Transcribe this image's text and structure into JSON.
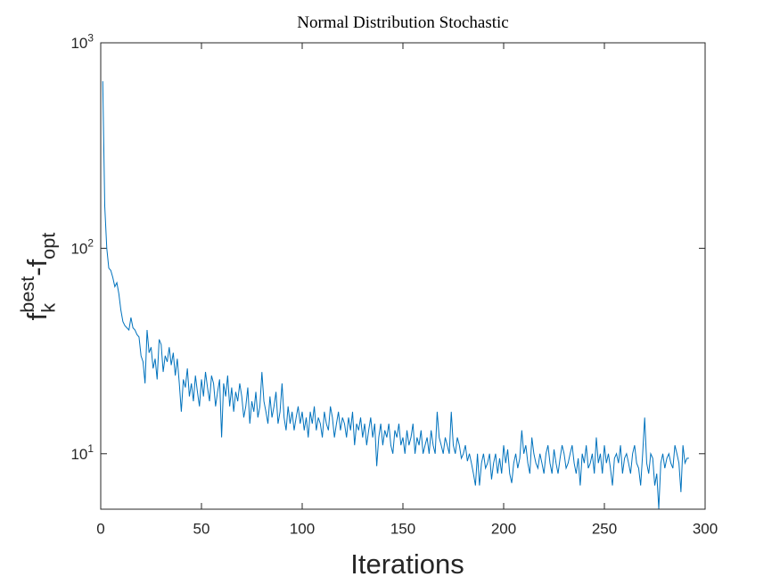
{
  "chart_data": {
    "type": "line",
    "title": "Normal Distribution Stochastic",
    "x_label": "Iterations",
    "y_label": "f_k^{best}-f_{opt}",
    "y_scale": "log",
    "color": "#0072bd",
    "xlim": [
      0,
      300
    ],
    "xticks": [
      0,
      50,
      100,
      150,
      200,
      250,
      300
    ],
    "ylim": [
      5.37,
      1000
    ],
    "yticks": [
      {
        "value": 10,
        "label": "10^1"
      },
      {
        "value": 100,
        "label": "10^2"
      },
      {
        "value": 1000,
        "label": "10^3"
      }
    ],
    "x": [
      1,
      2,
      3,
      4,
      5,
      6,
      7,
      8,
      9,
      10,
      11,
      12,
      13,
      14,
      15,
      16,
      17,
      18,
      19,
      20,
      21,
      22,
      23,
      24,
      25,
      26,
      27,
      28,
      29,
      30,
      31,
      32,
      33,
      34,
      35,
      36,
      37,
      38,
      39,
      40,
      41,
      42,
      43,
      44,
      45,
      46,
      47,
      48,
      49,
      50,
      51,
      52,
      53,
      54,
      55,
      56,
      57,
      58,
      59,
      60,
      61,
      62,
      63,
      64,
      65,
      66,
      67,
      68,
      69,
      70,
      71,
      72,
      73,
      74,
      75,
      76,
      77,
      78,
      79,
      80,
      81,
      82,
      83,
      84,
      85,
      86,
      87,
      88,
      89,
      90,
      91,
      92,
      93,
      94,
      95,
      96,
      97,
      98,
      99,
      100,
      101,
      102,
      103,
      104,
      105,
      106,
      107,
      108,
      109,
      110,
      111,
      112,
      113,
      114,
      115,
      116,
      117,
      118,
      119,
      120,
      121,
      122,
      123,
      124,
      125,
      126,
      127,
      128,
      129,
      130,
      131,
      132,
      133,
      134,
      135,
      136,
      137,
      138,
      139,
      140,
      141,
      142,
      143,
      144,
      145,
      146,
      147,
      148,
      149,
      150,
      151,
      152,
      153,
      154,
      155,
      156,
      157,
      158,
      159,
      160,
      161,
      162,
      163,
      164,
      165,
      166,
      167,
      168,
      169,
      170,
      171,
      172,
      173,
      174,
      175,
      176,
      177,
      178,
      179,
      180,
      181,
      182,
      183,
      184,
      185,
      186,
      187,
      188,
      189,
      190,
      191,
      192,
      193,
      194,
      195,
      196,
      197,
      198,
      199,
      200,
      201,
      202,
      203,
      204,
      205,
      206,
      207,
      208,
      209,
      210,
      211,
      212,
      213,
      214,
      215,
      216,
      217,
      218,
      219,
      220,
      221,
      222,
      223,
      224,
      225,
      226,
      227,
      228,
      229,
      230,
      231,
      232,
      233,
      234,
      235,
      236,
      237,
      238,
      239,
      240,
      241,
      242,
      243,
      244,
      245,
      246,
      247,
      248,
      249,
      250,
      251,
      252,
      253,
      254,
      255,
      256,
      257,
      258,
      259,
      260,
      261,
      262,
      263,
      264,
      265,
      266,
      267,
      268,
      269,
      270,
      271,
      272,
      273,
      274,
      275,
      276,
      277,
      278,
      279,
      280,
      281,
      282,
      283,
      284,
      285,
      286,
      287,
      288,
      289,
      290,
      291,
      292
    ],
    "values": [
      650,
      160,
      100,
      80,
      78,
      72,
      65,
      68,
      60,
      50,
      44,
      42,
      41,
      40,
      46,
      41,
      40,
      38,
      37,
      30,
      28,
      22,
      40,
      31,
      33,
      26,
      29,
      23,
      36,
      34,
      25,
      30,
      28,
      33,
      27,
      31,
      24,
      29,
      22,
      16,
      23,
      21,
      26,
      19,
      22,
      18,
      24,
      20,
      17,
      23,
      19,
      25,
      21,
      18,
      24,
      22,
      17,
      20,
      23,
      12,
      22,
      19,
      24,
      17,
      21,
      16,
      20,
      18,
      22,
      19,
      15,
      17,
      21,
      14,
      18,
      16,
      20,
      15,
      17,
      25,
      18,
      16,
      14,
      19,
      15,
      17,
      20,
      14,
      16,
      22,
      15,
      13,
      17,
      14,
      16,
      13,
      15,
      17,
      14,
      16,
      13,
      15,
      12,
      16,
      14,
      17,
      13,
      15,
      14,
      12,
      16,
      14,
      13,
      17,
      15,
      12,
      14,
      16,
      13,
      15,
      14,
      12,
      15,
      13,
      16,
      11,
      14,
      13,
      15,
      12,
      14,
      11,
      13,
      15,
      12,
      14,
      8.7,
      12,
      14,
      11,
      13,
      12,
      14,
      11,
      10,
      13,
      12,
      14,
      11,
      12,
      10,
      13,
      11,
      12,
      14,
      10,
      12,
      11,
      13,
      10,
      11,
      12,
      10,
      13,
      11,
      10,
      16,
      12,
      11,
      10,
      12,
      11,
      10,
      16,
      11,
      10,
      12,
      11,
      9.5,
      10,
      11,
      9.2,
      10,
      9,
      8,
      7,
      10,
      7,
      9,
      10,
      8.5,
      9,
      10,
      7.5,
      9,
      10,
      8,
      9.5,
      8,
      11,
      9,
      10.5,
      8,
      7.2,
      9,
      10,
      8.5,
      9.5,
      13,
      10,
      11,
      9,
      8,
      12,
      10,
      9,
      8.5,
      10,
      9,
      8,
      10,
      11,
      9,
      8,
      10.5,
      9,
      8,
      9.5,
      11,
      10,
      8.5,
      9,
      10,
      11,
      9,
      8,
      9.5,
      7,
      10,
      9,
      11,
      8.5,
      9,
      10,
      8,
      12,
      9,
      10,
      8,
      11,
      9,
      10,
      8.5,
      7,
      9.5,
      10,
      9,
      11,
      8,
      9.5,
      10,
      9,
      8,
      10,
      11,
      9,
      8.5,
      7,
      10,
      15,
      9,
      8,
      10,
      9.5,
      7,
      8,
      5.4,
      9,
      10,
      8.5,
      9.5,
      10,
      9,
      8.5,
      11,
      10,
      9,
      6.5,
      11,
      9,
      9.5,
      9.5
    ]
  }
}
